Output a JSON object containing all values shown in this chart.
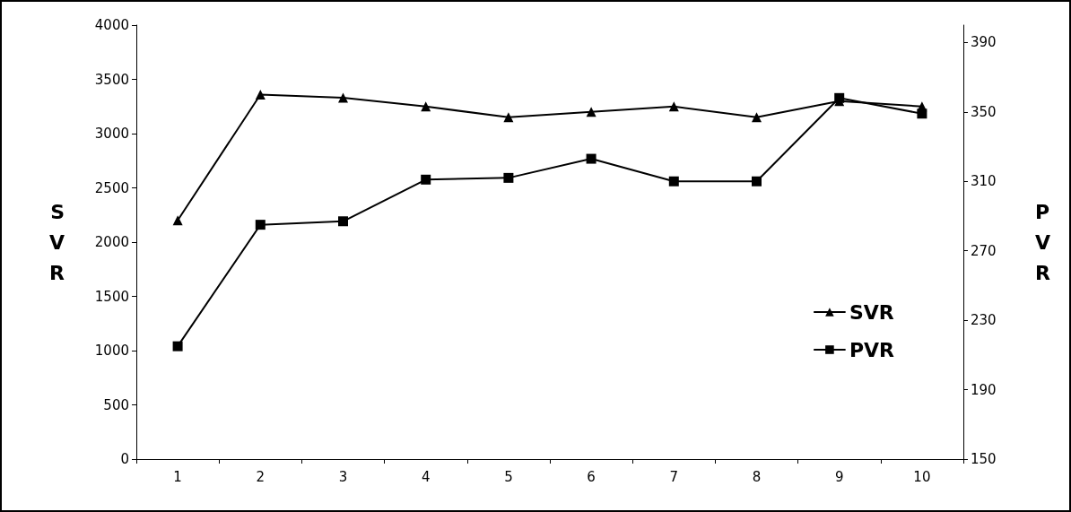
{
  "chart_data": {
    "type": "line",
    "categories": [
      "1",
      "2",
      "3",
      "4",
      "5",
      "6",
      "7",
      "8",
      "9",
      "10"
    ],
    "ylabel": "SVR",
    "y2label": "PVR",
    "ylim": [
      0,
      4000
    ],
    "yticks": [
      0,
      500,
      1000,
      1500,
      2000,
      2500,
      3000,
      3500,
      4000
    ],
    "y2lim": [
      150,
      400
    ],
    "y2ticks": [
      150,
      190,
      230,
      270,
      310,
      350,
      390
    ],
    "series": [
      {
        "name": "SVR",
        "color": "#000000",
        "marker": "triangle",
        "values": [
          2200,
          3360,
          3330,
          3250,
          3150,
          3200,
          3250,
          3150,
          3300,
          3250
        ]
      },
      {
        "name": "PVR",
        "color": "#000000",
        "marker": "square",
        "axis": "y2",
        "values": [
          215,
          285,
          287,
          311,
          312,
          323,
          310,
          310,
          358,
          349
        ]
      }
    ],
    "grid": false,
    "legend": "right",
    "line_style": "solid"
  }
}
